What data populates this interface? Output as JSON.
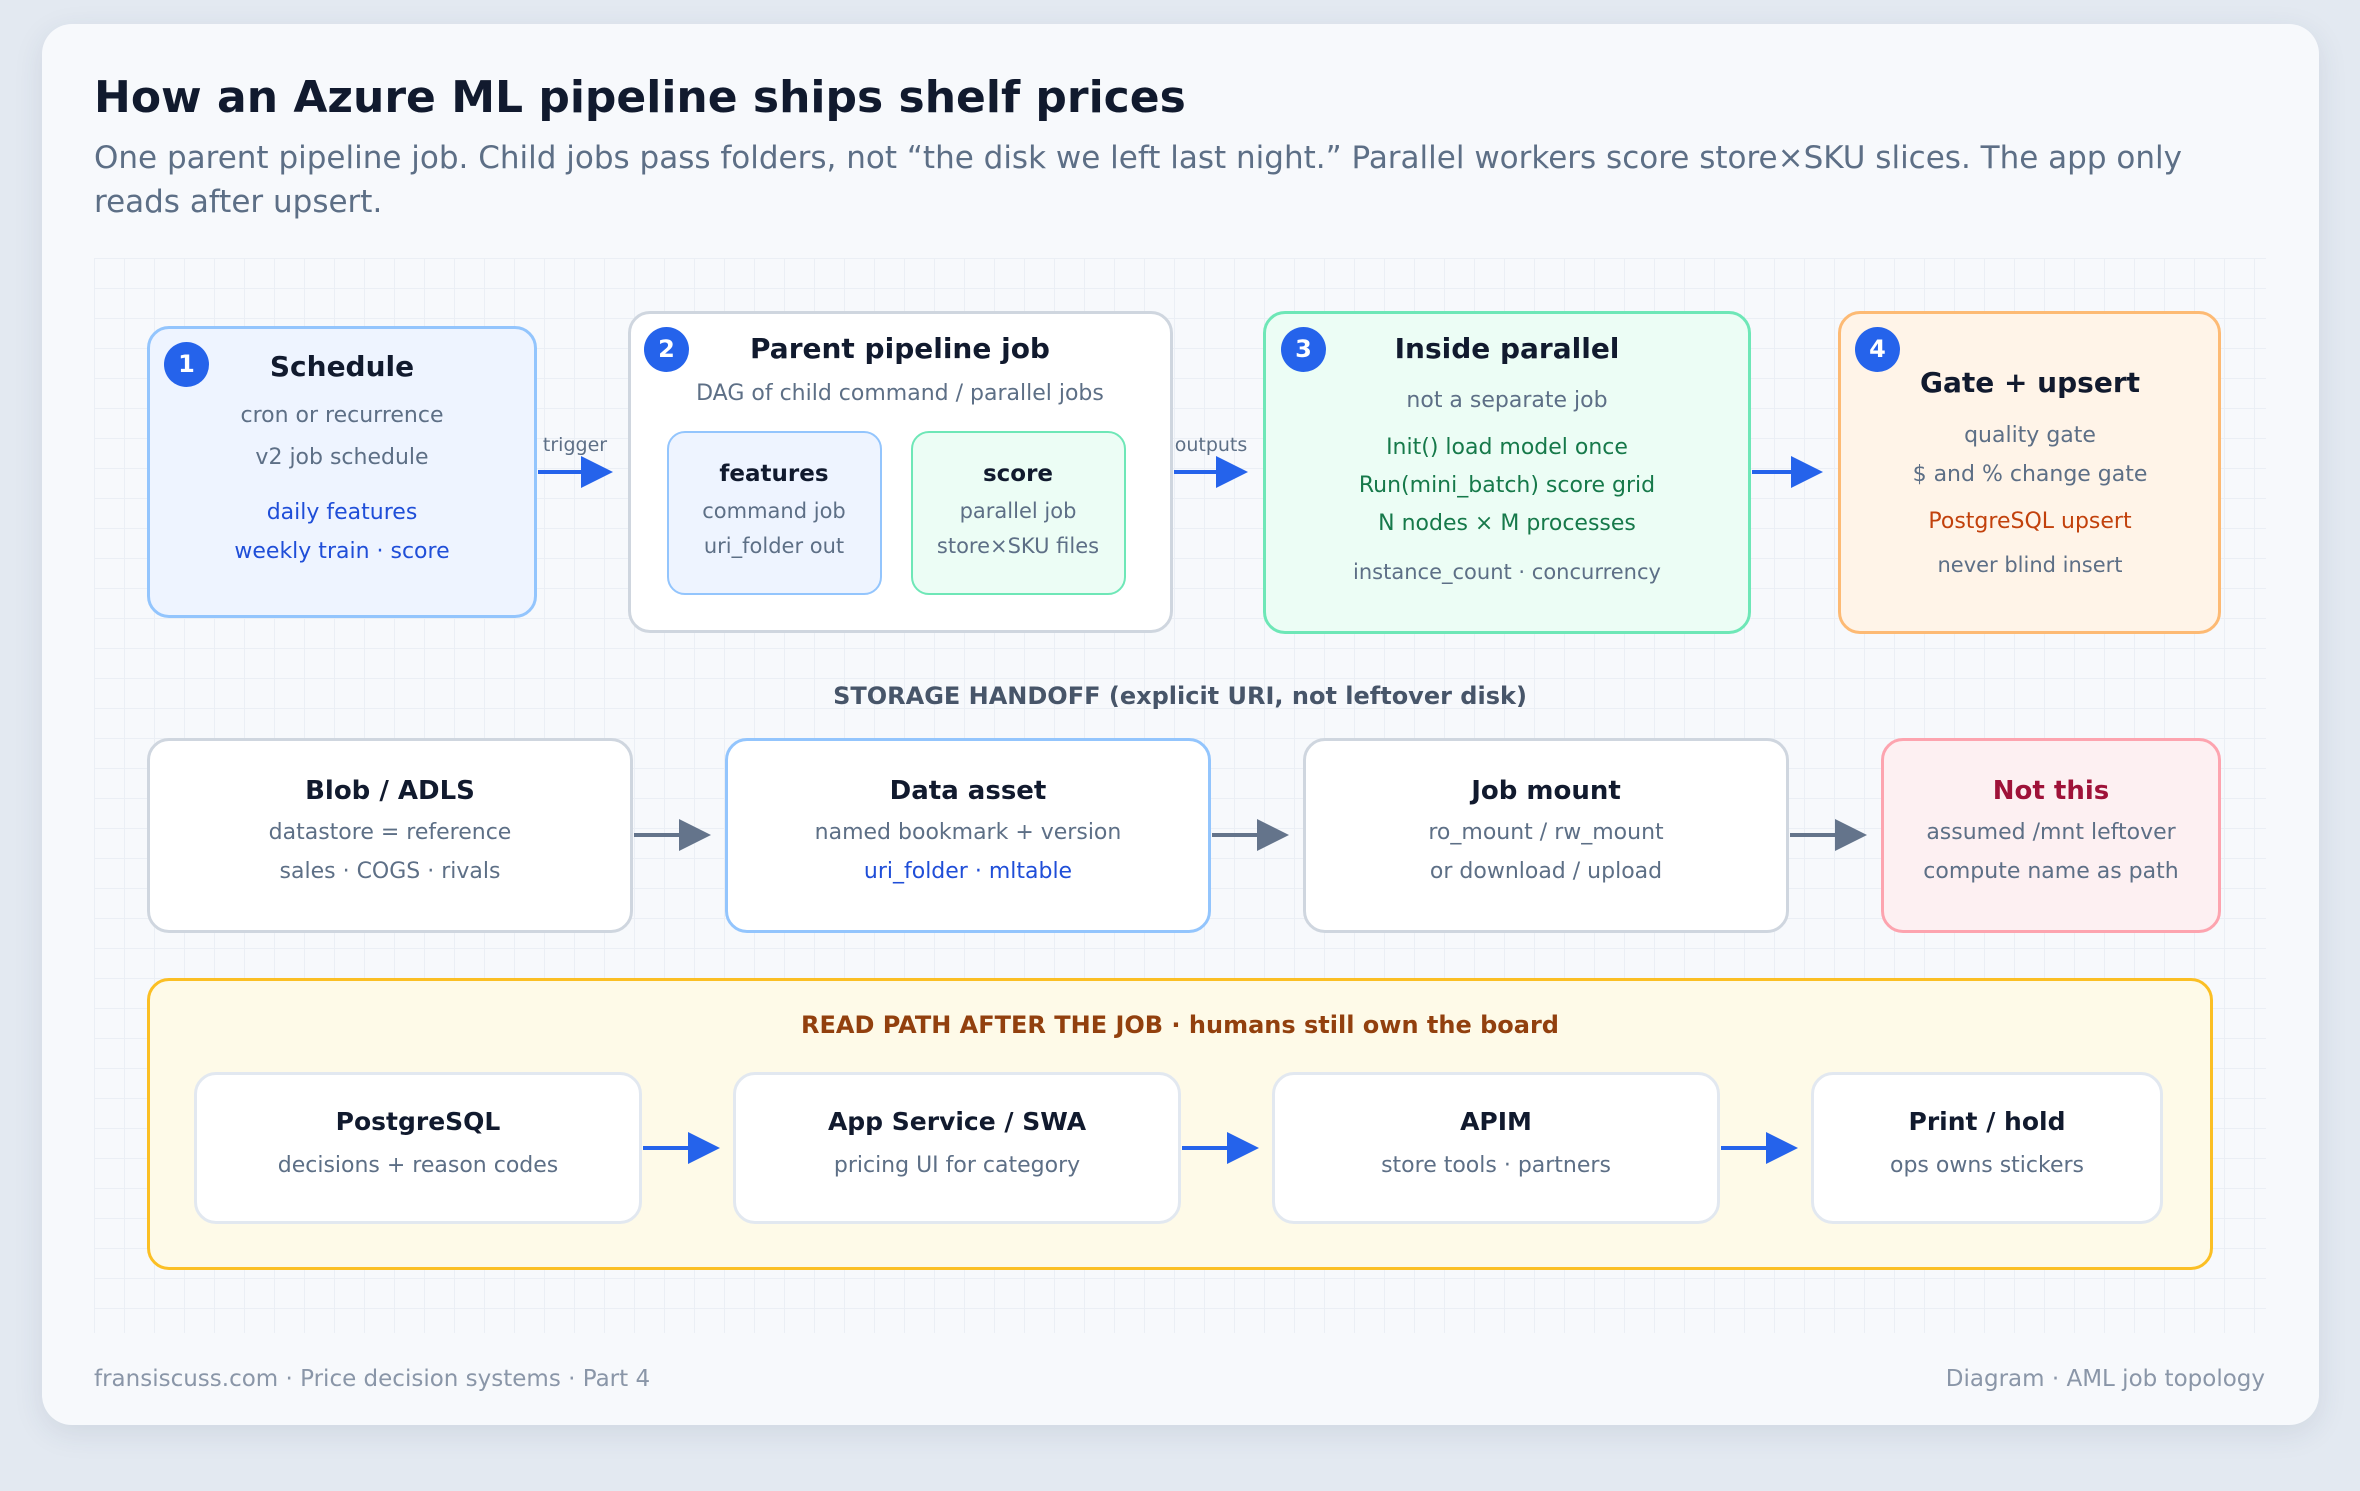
{
  "header": {
    "title": "How an Azure ML pipeline ships shelf prices",
    "subtitle": "One parent pipeline job. Child jobs pass folders, not “the disk we left last night.” Parallel workers score store×SKU slices. The app only reads after upsert."
  },
  "steps": {
    "schedule": {
      "badge": "1",
      "title": "Schedule",
      "line1": "cron or recurrence",
      "line2": "v2 job schedule",
      "link1": "daily features",
      "link2": "weekly train · score"
    },
    "parent": {
      "badge": "2",
      "title": "Parent pipeline job",
      "desc": "DAG of child command / parallel jobs",
      "features": {
        "title": "features",
        "line1": "command job",
        "line2": "uri_folder out"
      },
      "score": {
        "title": "score",
        "line1": "parallel job",
        "line2": "store×SKU files"
      }
    },
    "parallel": {
      "badge": "3",
      "title": "Inside parallel",
      "desc": "not a separate job",
      "g1": "Init() load model once",
      "g2": "Run(mini_batch) score grid",
      "g3": "N nodes × M processes",
      "foot": "instance_count · concurrency"
    },
    "gate": {
      "badge": "4",
      "title": "Gate + upsert",
      "line1": "quality gate",
      "line2": "$ and % change gate",
      "warn": "PostgreSQL upsert",
      "foot": "never blind insert"
    }
  },
  "arrow_labels": {
    "trigger": "trigger",
    "outputs": "outputs"
  },
  "storage": {
    "heading": "STORAGE HANDOFF (explicit URI, not leftover disk)",
    "blob": {
      "title": "Blob / ADLS",
      "line1": "datastore = reference",
      "line2": "sales · COGS · rivals"
    },
    "asset": {
      "title": "Data asset",
      "line1": "named bookmark + version",
      "link": "uri_folder · mltable"
    },
    "mount": {
      "title": "Job mount",
      "line1": "ro_mount / rw_mount",
      "line2": "or download / upload"
    },
    "notthis": {
      "title": "Not this",
      "line1": "assumed /mnt leftover",
      "line2": "compute name as path"
    }
  },
  "read_path": {
    "heading": "READ PATH AFTER THE JOB · humans still own the board",
    "items": [
      {
        "title": "PostgreSQL",
        "desc": "decisions + reason codes"
      },
      {
        "title": "App Service / SWA",
        "desc": "pricing UI for category"
      },
      {
        "title": "APIM",
        "desc": "store tools · partners"
      },
      {
        "title": "Print / hold",
        "desc": "ops owns stickers"
      }
    ]
  },
  "footer": {
    "left": "fransiscuss.com · Price decision systems · Part 4",
    "right": "Diagram · AML job topology"
  },
  "colors": {
    "accent": "#2563eb",
    "blue_border": "#93c5fd",
    "green_border": "#6ee7b7",
    "orange_border": "#fdba74",
    "red_border": "#fda4af",
    "yellow_border": "#fbbf24"
  }
}
